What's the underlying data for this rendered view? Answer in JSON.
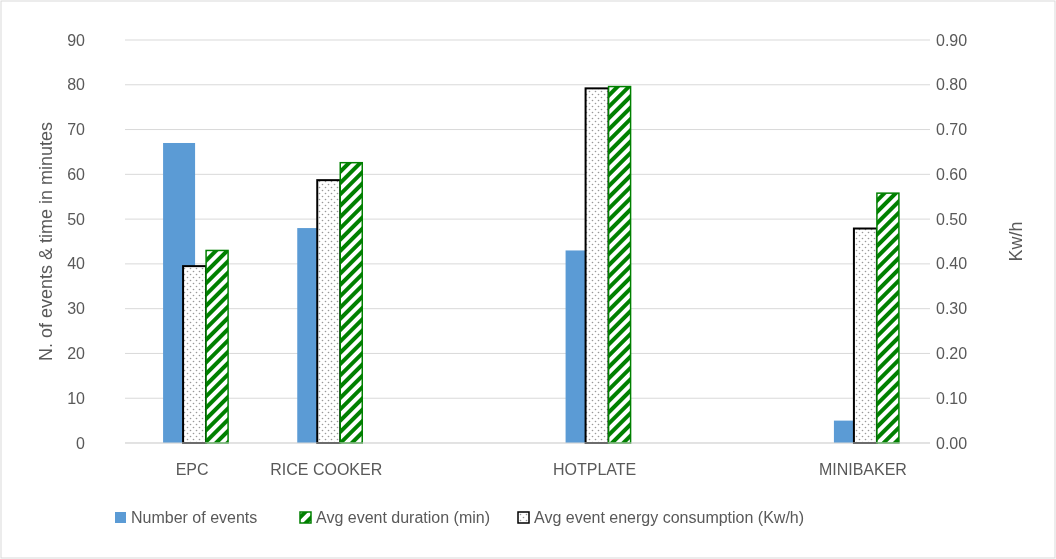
{
  "chart_data": {
    "type": "bar",
    "categories": [
      "EPC",
      "RICE COOKER",
      null,
      "HOTPLATE",
      null,
      "MINIBAKER"
    ],
    "series": [
      {
        "name": "Number of events",
        "color": "#5b9bd5",
        "values": [
          67,
          48,
          null,
          43,
          null,
          5
        ]
      },
      {
        "name": "Avg event duration (min)",
        "color": "#008000",
        "values": [
          43,
          62.6,
          null,
          79.6,
          null,
          55.8
        ]
      },
      {
        "name": "Avg event energy consumption (Kw/h)",
        "color": "#000000",
        "axis": "y2",
        "values": [
          0.395,
          0.587,
          null,
          0.792,
          null,
          0.479
        ]
      }
    ],
    "ylabel": "N. of events & time in minutes",
    "y2label": "Kw/h",
    "ylim": [
      0,
      90
    ],
    "yticks": [
      0,
      10,
      20,
      30,
      40,
      50,
      60,
      70,
      80,
      90
    ],
    "y2lim": [
      0,
      0.9
    ],
    "y2ticks": [
      {
        "value": 0,
        "label": "0.00"
      },
      {
        "value": 0.1,
        "label": "0.10"
      },
      {
        "value": 0.2,
        "label": "0.20"
      },
      {
        "value": 0.3,
        "label": "0.30"
      },
      {
        "value": 0.4,
        "label": "0.40"
      },
      {
        "value": 0.5,
        "label": "0.50"
      },
      {
        "value": 0.6,
        "label": "0.60"
      },
      {
        "value": 0.7,
        "label": "0.70"
      },
      {
        "value": 0.8,
        "label": "0.80"
      },
      {
        "value": 0.9,
        "label": "0.90"
      }
    ],
    "grid": "y",
    "legend": "bottom"
  }
}
